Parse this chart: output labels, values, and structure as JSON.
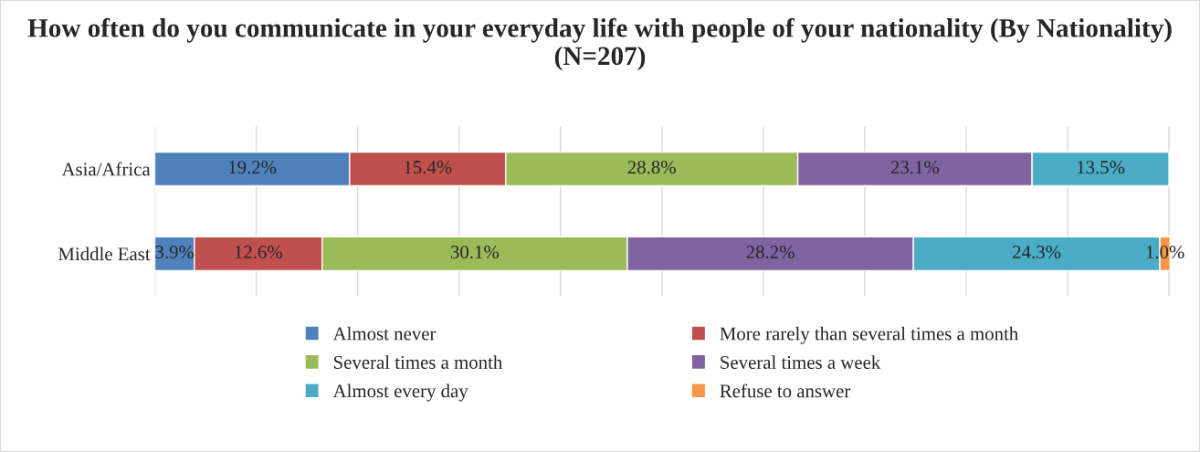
{
  "chart_data": {
    "type": "bar",
    "orientation": "horizontal",
    "stacked": true,
    "title": "How often do you communicate in your everyday life with people of your nationality (By Nationality) (N=207)",
    "categories": [
      "Asia/Africa",
      "Middle East"
    ],
    "series": [
      {
        "name": "Almost never",
        "color": "#4f81bd",
        "values": [
          19.2,
          3.9
        ],
        "value_labels": [
          "19.2%",
          "3.9%"
        ]
      },
      {
        "name": "More rarely than several times a month",
        "color": "#c0504d",
        "values": [
          15.4,
          12.6
        ],
        "value_labels": [
          "15.4%",
          "12.6%"
        ]
      },
      {
        "name": "Several times a month",
        "color": "#9bbb59",
        "values": [
          28.8,
          30.1
        ],
        "value_labels": [
          "28.8%",
          "30.1%"
        ]
      },
      {
        "name": "Several times a week",
        "color": "#8064a2",
        "values": [
          23.1,
          28.2
        ],
        "value_labels": [
          "23.1%",
          "28.2%"
        ]
      },
      {
        "name": "Almost every day",
        "color": "#4bacc6",
        "values": [
          13.5,
          24.3
        ],
        "value_labels": [
          "13.5%",
          "24.3%"
        ]
      },
      {
        "name": "Refuse to answer",
        "color": "#f79646",
        "values": [
          null,
          1.0
        ],
        "value_labels": [
          null,
          "1.0%"
        ]
      }
    ],
    "xlim": [
      0,
      100.1
    ],
    "xticks": [
      {
        "value": 0,
        "label": null
      },
      {
        "value": 10,
        "label": null
      },
      {
        "value": 20,
        "label": null
      },
      {
        "value": 30,
        "label": null
      },
      {
        "value": 40,
        "label": null
      },
      {
        "value": 50,
        "label": null
      },
      {
        "value": 60,
        "label": null
      },
      {
        "value": 70,
        "label": null
      },
      {
        "value": 80,
        "label": null
      },
      {
        "value": 90,
        "label": null
      },
      {
        "value": 100,
        "label": null
      }
    ],
    "tick_labels": "y",
    "grid": "x",
    "legend": "bottom"
  }
}
